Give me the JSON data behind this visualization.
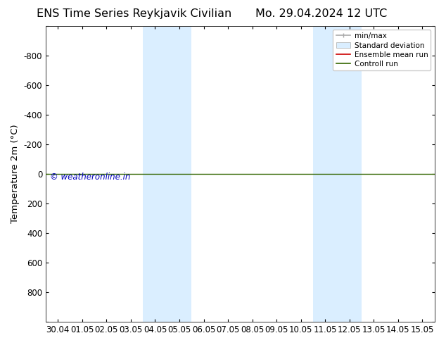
{
  "title_left": "ENS Time Series Reykjavik Civilian",
  "title_right": "Mo. 29.04.2024 12 UTC",
  "ylabel": "Temperature 2m (°C)",
  "watermark": "© weatheronline.in",
  "x_ticks": [
    "30.04",
    "01.05",
    "02.05",
    "03.05",
    "04.05",
    "05.05",
    "06.05",
    "07.05",
    "08.05",
    "09.05",
    "10.05",
    "11.05",
    "12.05",
    "13.05",
    "14.05",
    "15.05"
  ],
  "ylim": [
    -1000,
    1000
  ],
  "y_ticks": [
    -1000,
    -800,
    -600,
    -400,
    -200,
    0,
    200,
    400,
    600,
    800,
    1000
  ],
  "y_tick_labels": [
    "",
    "-800",
    "-600",
    "-400",
    "-200",
    "0",
    "200",
    "400",
    "600",
    "800",
    ""
  ],
  "shaded_regions": [
    {
      "xstart": 4,
      "xend": 6
    },
    {
      "xstart": 11,
      "xend": 13
    }
  ],
  "shaded_color": "#daeeff",
  "hline_y": 0,
  "hline_color": "#336600",
  "hline_lw": 1.0,
  "bg_color": "#ffffff",
  "title_fontsize": 11.5,
  "tick_fontsize": 8.5,
  "ylabel_fontsize": 9.5,
  "legend_entries": [
    "min/max",
    "Standard deviation",
    "Ensemble mean run",
    "Controll run"
  ],
  "legend_colors_line": [
    "#aaaaaa",
    "#cccccc",
    "#cc0000",
    "#336600"
  ],
  "watermark_color": "#0000bb",
  "watermark_fontsize": 8.5,
  "title_font": "DejaVu Sans"
}
